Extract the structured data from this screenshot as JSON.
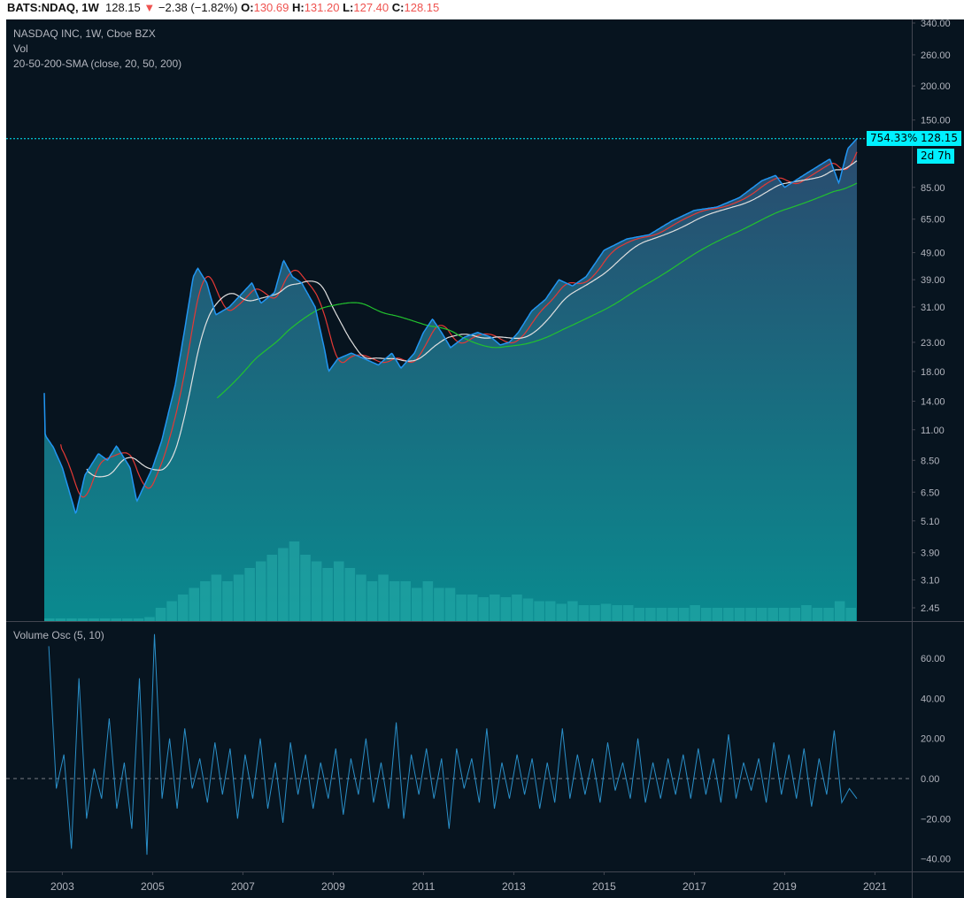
{
  "header": {
    "symbol": "BATS:NDAQ, 1W",
    "last": "128.15",
    "change": "−2.38 (−1.82%)",
    "o_label": "O:",
    "o": "130.69",
    "h_label": "H:",
    "h": "131.20",
    "l_label": "L:",
    "l": "127.40",
    "c_label": "C:",
    "c": "128.15",
    "down_icon": "triangle-down-icon"
  },
  "legend": {
    "title": "NASDAQ INC, 1W, Cboe BZX",
    "vol": "Vol",
    "sma": "20-50-200-SMA (close, 20, 50, 200)",
    "osc": "Volume Osc (5, 10)"
  },
  "tags": {
    "percent": "754.33%",
    "price": "128.15",
    "countdown": "2d 7h"
  },
  "colors": {
    "background": "#07141f",
    "price_line": "#2196f3",
    "sma20": "#e53935",
    "sma50": "#e0e0e0",
    "sma200": "#22c22e",
    "osc_line": "#2a8fc8",
    "tag": "#00f0ff",
    "down": "#ef5350"
  },
  "chart_data": [
    {
      "type": "area",
      "scale": "log",
      "ylim": [
        2.45,
        340
      ],
      "yticks": [
        340,
        260,
        200,
        150,
        85,
        65,
        49,
        39,
        31,
        23,
        18,
        14,
        11,
        8.5,
        6.5,
        5.1,
        3.9,
        3.1,
        2.45
      ],
      "xticks": [
        "2003",
        "2005",
        "2007",
        "2009",
        "2011",
        "2013",
        "2015",
        "2017",
        "2019",
        "2021"
      ],
      "xlim": [
        2002.55,
        2021.8
      ],
      "close": [
        [
          2002.6,
          15
        ],
        [
          2002.62,
          10.5
        ],
        [
          2002.8,
          9.5
        ],
        [
          2003.0,
          8
        ],
        [
          2003.3,
          5.4
        ],
        [
          2003.5,
          7.5
        ],
        [
          2003.8,
          9
        ],
        [
          2004.0,
          8.5
        ],
        [
          2004.2,
          9.6
        ],
        [
          2004.5,
          8
        ],
        [
          2004.65,
          6
        ],
        [
          2005.0,
          8
        ],
        [
          2005.2,
          10
        ],
        [
          2005.5,
          16
        ],
        [
          2005.7,
          25
        ],
        [
          2005.9,
          40
        ],
        [
          2006.0,
          43
        ],
        [
          2006.2,
          38
        ],
        [
          2006.4,
          29
        ],
        [
          2006.7,
          31
        ],
        [
          2007.0,
          35
        ],
        [
          2007.2,
          38
        ],
        [
          2007.4,
          32
        ],
        [
          2007.7,
          35
        ],
        [
          2007.9,
          46
        ],
        [
          2008.1,
          40
        ],
        [
          2008.3,
          38
        ],
        [
          2008.6,
          31
        ],
        [
          2008.8,
          22
        ],
        [
          2008.9,
          18
        ],
        [
          2009.1,
          20
        ],
        [
          2009.4,
          21
        ],
        [
          2009.7,
          20
        ],
        [
          2010.0,
          19
        ],
        [
          2010.3,
          21
        ],
        [
          2010.5,
          18.5
        ],
        [
          2010.8,
          21
        ],
        [
          2011.0,
          25
        ],
        [
          2011.2,
          28
        ],
        [
          2011.4,
          25
        ],
        [
          2011.6,
          22
        ],
        [
          2011.9,
          24
        ],
        [
          2012.2,
          25
        ],
        [
          2012.5,
          24
        ],
        [
          2012.7,
          22.5
        ],
        [
          2012.9,
          23
        ],
        [
          2013.1,
          25
        ],
        [
          2013.4,
          30
        ],
        [
          2013.7,
          33
        ],
        [
          2014.0,
          39
        ],
        [
          2014.3,
          37
        ],
        [
          2014.6,
          40
        ],
        [
          2015.0,
          50
        ],
        [
          2015.5,
          55
        ],
        [
          2016.0,
          57
        ],
        [
          2016.5,
          64
        ],
        [
          2017.0,
          70
        ],
        [
          2017.5,
          72
        ],
        [
          2018.0,
          78
        ],
        [
          2018.5,
          90
        ],
        [
          2018.8,
          94
        ],
        [
          2019.0,
          85
        ],
        [
          2019.5,
          96
        ],
        [
          2020.0,
          108
        ],
        [
          2020.2,
          88
        ],
        [
          2020.4,
          118
        ],
        [
          2020.6,
          128.15
        ]
      ],
      "sma_periods": [
        20,
        50,
        200
      ],
      "volume_relative": [
        0.02,
        0.02,
        0.02,
        0.02,
        0.02,
        0.02,
        0.02,
        0.02,
        0.02,
        0.03,
        0.1,
        0.15,
        0.2,
        0.25,
        0.3,
        0.35,
        0.3,
        0.35,
        0.4,
        0.45,
        0.5,
        0.55,
        0.6,
        0.5,
        0.45,
        0.4,
        0.45,
        0.4,
        0.35,
        0.3,
        0.35,
        0.3,
        0.3,
        0.25,
        0.3,
        0.25,
        0.25,
        0.2,
        0.2,
        0.18,
        0.2,
        0.18,
        0.2,
        0.17,
        0.15,
        0.15,
        0.13,
        0.15,
        0.12,
        0.12,
        0.13,
        0.12,
        0.12,
        0.1,
        0.1,
        0.1,
        0.1,
        0.1,
        0.12,
        0.1,
        0.1,
        0.1,
        0.1,
        0.1,
        0.1,
        0.1,
        0.1,
        0.1,
        0.12,
        0.1,
        0.1,
        0.15,
        0.1
      ]
    },
    {
      "type": "line",
      "name": "Volume Osc (5, 10)",
      "ylim": [
        -45,
        75
      ],
      "yticks": [
        60,
        40,
        20,
        0,
        -20,
        -40
      ],
      "zero_line": "dashed",
      "values": [
        66,
        -5,
        12,
        -35,
        50,
        -20,
        5,
        -10,
        30,
        -15,
        8,
        -25,
        50,
        -38,
        72,
        -10,
        20,
        -15,
        25,
        -5,
        10,
        -12,
        18,
        -8,
        15,
        -20,
        12,
        -10,
        20,
        -15,
        8,
        -22,
        18,
        -8,
        12,
        -15,
        8,
        -10,
        15,
        -18,
        10,
        -8,
        20,
        -12,
        8,
        -15,
        28,
        -20,
        12,
        -8,
        15,
        -10,
        10,
        -25,
        15,
        -5,
        10,
        -12,
        25,
        -15,
        8,
        -10,
        12,
        -8,
        10,
        -15,
        8,
        -12,
        25,
        -10,
        12,
        -8,
        10,
        -12,
        18,
        -6,
        8,
        -10,
        20,
        -12,
        8,
        -10,
        10,
        -8,
        12,
        -10,
        15,
        -8,
        10,
        -12,
        22,
        -10,
        8,
        -6,
        10,
        -12,
        18,
        -8,
        12,
        -10,
        15,
        -14,
        10,
        -8,
        24,
        -12,
        -5,
        -10
      ]
    }
  ]
}
